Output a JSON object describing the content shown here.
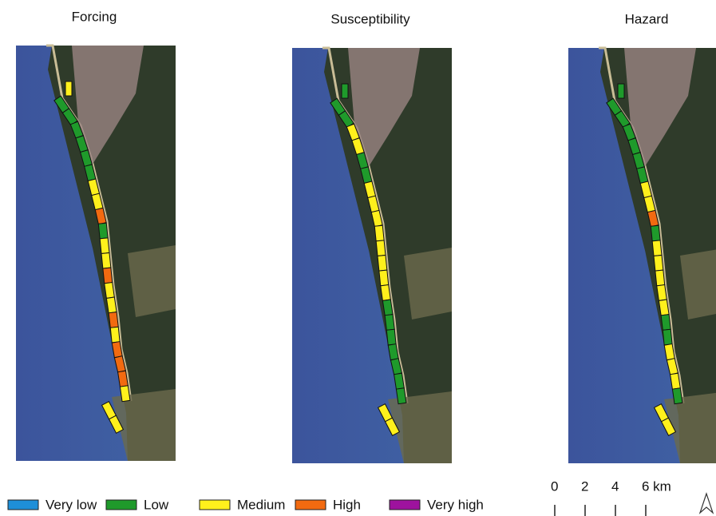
{
  "panels": [
    {
      "title": "Forcing",
      "segments": [
        2,
        1,
        1,
        1,
        1,
        1,
        1,
        2,
        2,
        3,
        1,
        2,
        2,
        3,
        2,
        2,
        3,
        2,
        3,
        3,
        3,
        2,
        2,
        2
      ]
    },
    {
      "title": "Susceptibility",
      "segments": [
        1,
        1,
        1,
        2,
        2,
        1,
        1,
        2,
        2,
        2,
        2,
        2,
        2,
        2,
        2,
        1,
        1,
        1,
        1,
        1,
        1,
        1,
        2,
        2
      ]
    },
    {
      "title": "Hazard",
      "segments": [
        1,
        1,
        1,
        1,
        1,
        1,
        1,
        2,
        2,
        3,
        1,
        2,
        2,
        2,
        2,
        2,
        1,
        1,
        2,
        2,
        2,
        1,
        2,
        2
      ]
    }
  ],
  "legend": [
    {
      "label": "Very low",
      "color": "#1e8fd8"
    },
    {
      "label": "Low",
      "color": "#1f9a2b"
    },
    {
      "label": "Medium",
      "color": "#fff01c"
    },
    {
      "label": "High",
      "color": "#f26a10"
    },
    {
      "label": "Very high",
      "color": "#9e129e"
    }
  ],
  "scale_bar": {
    "ticks": [
      "0",
      "2",
      "4",
      "6 km"
    ]
  }
}
